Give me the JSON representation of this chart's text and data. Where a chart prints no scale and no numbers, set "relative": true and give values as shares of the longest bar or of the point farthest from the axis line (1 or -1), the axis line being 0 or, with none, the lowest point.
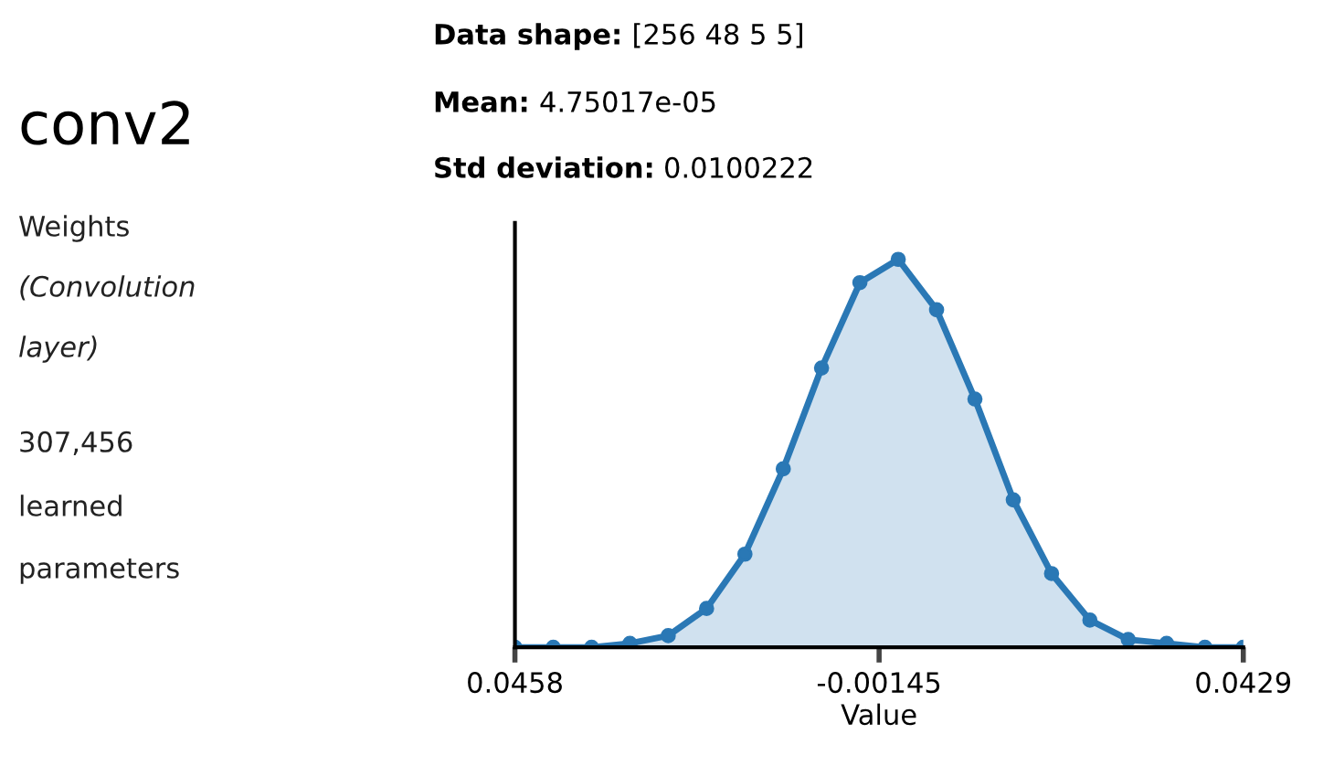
{
  "chart_data": {
    "type": "area",
    "title": "conv2",
    "xlabel": "Value",
    "relative": true,
    "marker": "circle",
    "tick_labels": "x",
    "xlim": [
      -0.0458,
      0.0429
    ],
    "xticks": [
      {
        "value": -0.0458,
        "label": "0.0458"
      },
      -0.00145,
      0.0429
    ],
    "x": [
      -0.0458,
      -0.04113,
      -0.03646,
      -0.0318,
      -0.02713,
      -0.02246,
      -0.01779,
      -0.01312,
      -0.00846,
      -0.00379,
      0.00088,
      0.00555,
      0.01022,
      0.01489,
      0.01955,
      0.02422,
      0.02889,
      0.03356,
      0.03823,
      0.0429
    ],
    "series": [
      {
        "color": "#2a78b5",
        "values": [
          0,
          0,
          0,
          0.01,
          0.03,
          0.1,
          0.24,
          0.46,
          0.72,
          0.94,
          1.0,
          0.87,
          0.64,
          0.38,
          0.19,
          0.07,
          0.02,
          0.01,
          0,
          0
        ]
      }
    ],
    "annotations": [
      "Weights",
      "(Convolution",
      "layer)",
      "307,456",
      "learned",
      "parameters",
      "Data shape:",
      "[256 48 5 5]",
      "Mean:",
      "4.75017e-05",
      "Std deviation:",
      "0.0100222"
    ]
  }
}
